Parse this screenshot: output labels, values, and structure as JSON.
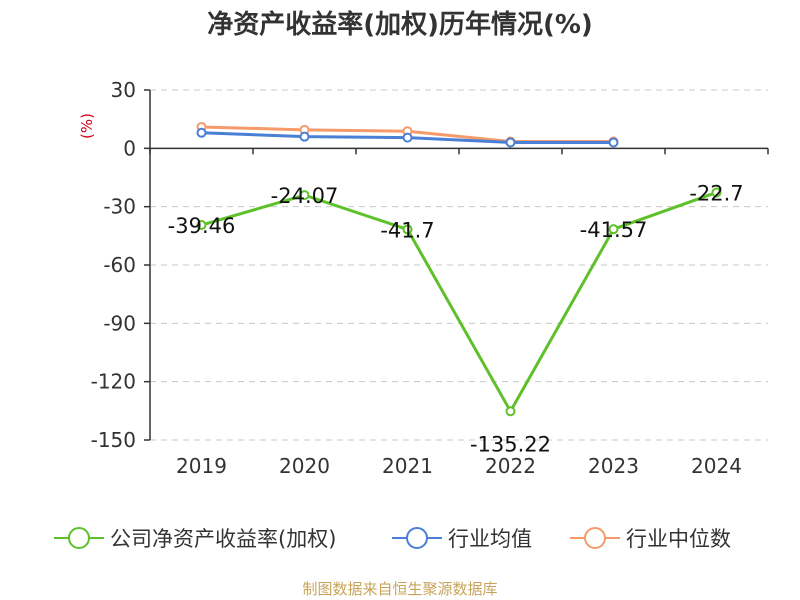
{
  "chart_data": {
    "type": "line",
    "title": "净资产收益率(加权)历年情况(%)",
    "ylabel": "(%)",
    "categories": [
      "2019",
      "2020",
      "2021",
      "2022",
      "2023",
      "2024"
    ],
    "ylim": [
      -150,
      30
    ],
    "yticks": [
      30,
      0,
      -30,
      -60,
      -90,
      -120,
      -150
    ],
    "grid": true,
    "legend_position": "bottom",
    "series": [
      {
        "name": "公司净资产收益率(加权)",
        "color": "#5ec12a",
        "values": [
          -39.46,
          -24.07,
          -41.7,
          -135.22,
          -41.57,
          -22.7
        ],
        "labels": [
          "-39.46",
          "-24.07",
          "-41.7",
          "-135.22",
          "-41.57",
          "-22.7"
        ]
      },
      {
        "name": "行业均值",
        "color": "#4a7fd6",
        "values": [
          8,
          6,
          5.5,
          3,
          3,
          null
        ]
      },
      {
        "name": "行业中位数",
        "color": "#f59a6b",
        "values": [
          11,
          9.5,
          8.8,
          3.5,
          3.5,
          null
        ]
      }
    ]
  },
  "source": "制图数据来自恒生聚源数据库"
}
